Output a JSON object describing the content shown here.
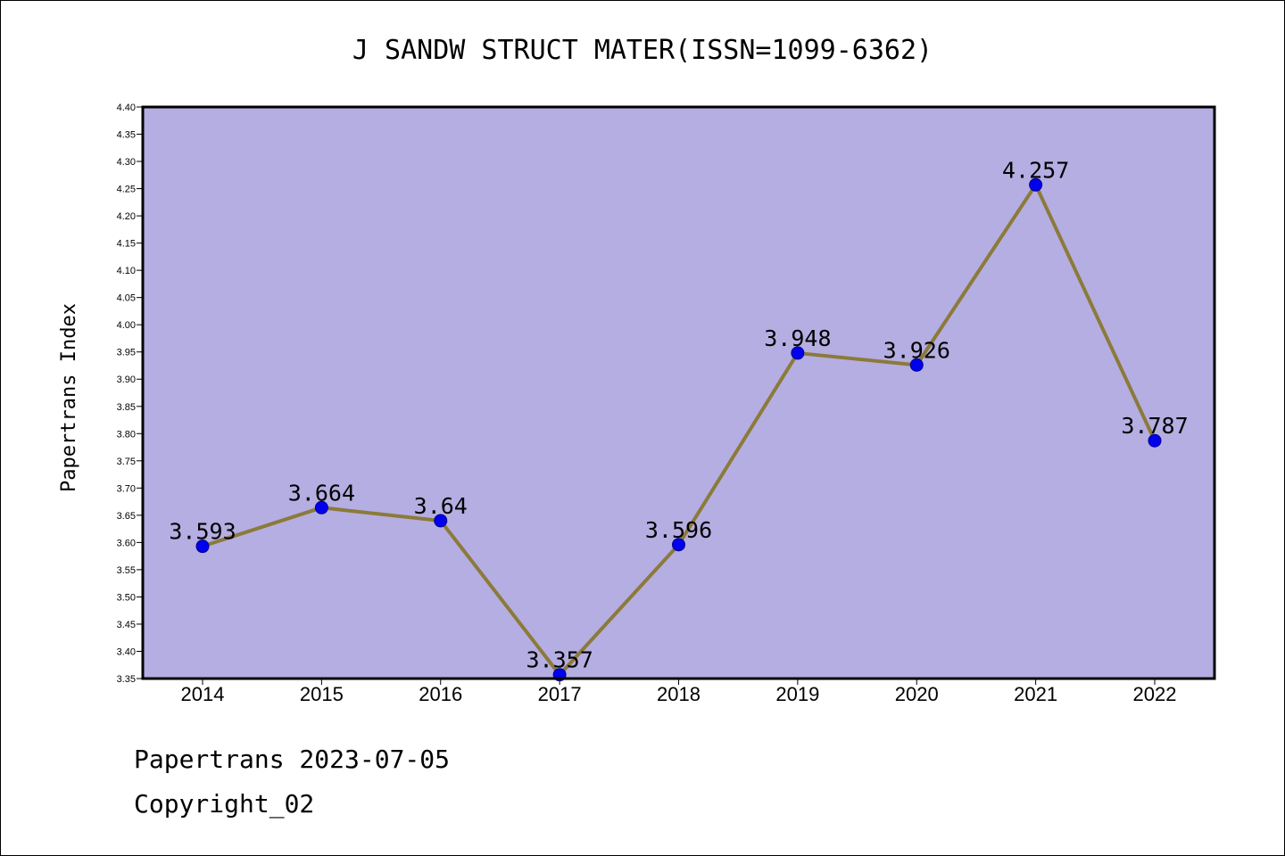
{
  "chart_data": {
    "type": "line",
    "title": "J SANDW STRUCT MATER(ISSN=1099-6362)",
    "xlabel": "",
    "ylabel": "Papertrans Index",
    "categories": [
      "2014",
      "2015",
      "2016",
      "2017",
      "2018",
      "2019",
      "2020",
      "2021",
      "2022"
    ],
    "series": [
      {
        "values": [
          3.593,
          3.664,
          3.64,
          3.357,
          3.596,
          3.948,
          3.926,
          4.257,
          3.787
        ]
      }
    ],
    "data_labels": [
      "3.593",
      "3.664",
      "3.64",
      "3.357",
      "3.596",
      "3.948",
      "3.926",
      "4.257",
      "3.787"
    ],
    "ylim": [
      3.35,
      4.4
    ],
    "yticks": [
      "3.35",
      "3.40",
      "3.45",
      "3.50",
      "3.55",
      "3.60",
      "3.65",
      "3.70",
      "3.75",
      "3.80",
      "3.85",
      "3.90",
      "3.95",
      "4.00",
      "4.05",
      "4.10",
      "4.15",
      "4.20",
      "4.25",
      "4.30",
      "4.35",
      "4.40"
    ],
    "grid": false,
    "colors": {
      "plot_background": "#b5aee2",
      "line": "#8b7a3a",
      "marker": "#0000ee"
    }
  },
  "footer": {
    "line1": "Papertrans 2023-07-05",
    "line2": "Copyright_02"
  }
}
